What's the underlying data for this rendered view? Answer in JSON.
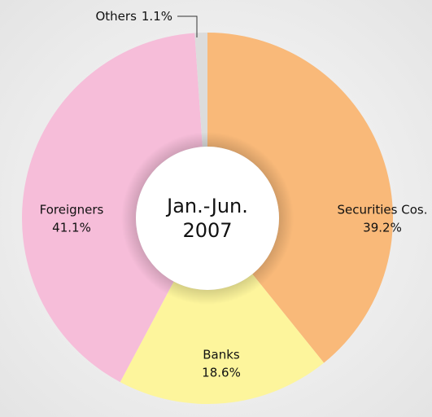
{
  "chart_data": {
    "type": "donut",
    "center_label": [
      "Jan.-Jun.",
      "2007"
    ],
    "categories": [
      "Securities Cos.",
      "Banks",
      "Foreigners",
      "Others"
    ],
    "values": [
      39.2,
      18.6,
      41.1,
      1.1
    ],
    "value_labels": [
      "39.2%",
      "18.6%",
      "41.1%",
      "1.1%"
    ],
    "colors": [
      "#f9b979",
      "#fdf59c",
      "#f6bdd9",
      "#dcdcdc"
    ]
  }
}
